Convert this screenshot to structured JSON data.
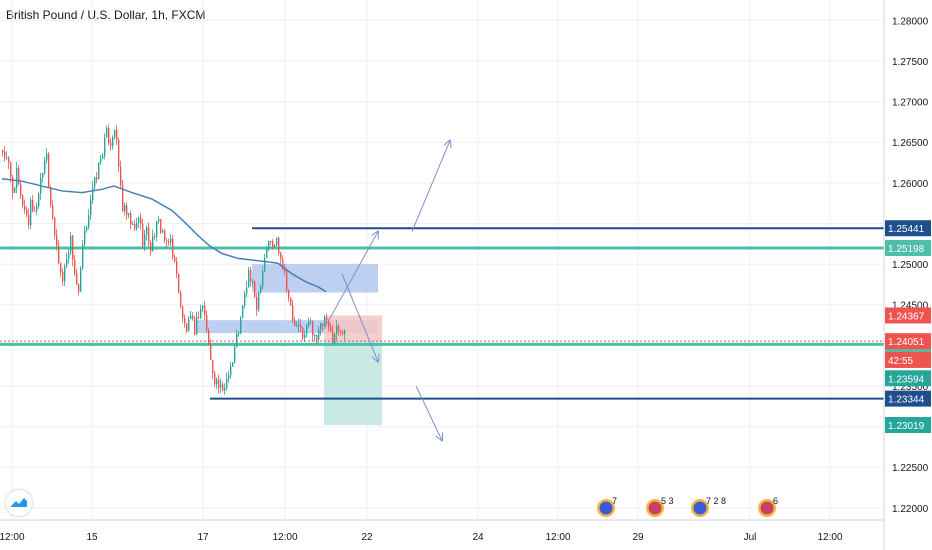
{
  "header": {
    "symbol_title": "British Pound / U.S. Dollar, 1h, FXCM"
  },
  "colors": {
    "up": "#26a69a",
    "down": "#ef5350",
    "ma": "#4a7fb5",
    "teal_line": "#4dbfa8",
    "navy_line": "#1f4e8c",
    "blue_zone": "#b3c8ef",
    "red_zone": "#f6c6c6",
    "green_zone": "#bfe5df",
    "arrow": "#7c8fd0",
    "price_line": "#d05050",
    "grid": "#eef0f3"
  },
  "chart_data": {
    "type": "candlestick",
    "title": "British Pound / U.S. Dollar, 1h, FXCM",
    "ylim": [
      1.2185,
      1.2825
    ],
    "x_tick_labels": [
      "12:00",
      "15",
      "17",
      "12:00",
      "22",
      "24",
      "12:00",
      "29",
      "Jul",
      "12:00"
    ],
    "y_tick_labels": [
      "1.28000",
      "1.27500",
      "1.27000",
      "1.26500",
      "1.26000",
      "1.25500",
      "1.25000",
      "1.24500",
      "1.24000",
      "1.23500",
      "1.23000",
      "1.22500",
      "1.22000"
    ],
    "y_ticks": [
      1.28,
      1.275,
      1.27,
      1.265,
      1.26,
      1.255,
      1.25,
      1.245,
      1.24,
      1.235,
      1.23,
      1.225,
      1.22
    ],
    "close_path": [
      [
        0,
        1.264
      ],
      [
        3,
        1.262
      ],
      [
        5,
        1.259
      ],
      [
        7,
        1.261
      ],
      [
        9,
        1.258
      ],
      [
        11,
        1.257
      ],
      [
        13,
        1.255
      ],
      [
        14,
        1.258
      ],
      [
        16,
        1.256
      ],
      [
        18,
        1.259
      ],
      [
        20,
        1.262
      ],
      [
        22,
        1.264
      ],
      [
        23,
        1.26
      ],
      [
        25,
        1.255
      ],
      [
        27,
        1.252
      ],
      [
        29,
        1.249
      ],
      [
        30,
        1.248
      ],
      [
        32,
        1.251
      ],
      [
        34,
        1.253
      ],
      [
        36,
        1.249
      ],
      [
        38,
        1.246
      ],
      [
        40,
        1.252
      ],
      [
        42,
        1.255
      ],
      [
        44,
        1.258
      ],
      [
        46,
        1.26
      ],
      [
        48,
        1.262
      ],
      [
        50,
        1.264
      ],
      [
        52,
        1.266
      ],
      [
        54,
        1.265
      ],
      [
        56,
        1.267
      ],
      [
        58,
        1.262
      ],
      [
        60,
        1.257
      ],
      [
        62,
        1.256
      ],
      [
        64,
        1.255
      ],
      [
        66,
        1.254
      ],
      [
        68,
        1.256
      ],
      [
        70,
        1.253
      ],
      [
        72,
        1.254
      ],
      [
        74,
        1.252
      ],
      [
        76,
        1.254
      ],
      [
        78,
        1.255
      ],
      [
        80,
        1.254
      ],
      [
        82,
        1.252
      ],
      [
        84,
        1.253
      ],
      [
        86,
        1.25
      ],
      [
        88,
        1.247
      ],
      [
        90,
        1.243
      ],
      [
        92,
        1.242
      ],
      [
        94,
        1.243
      ],
      [
        96,
        1.242
      ],
      [
        98,
        1.244
      ],
      [
        100,
        1.245
      ],
      [
        102,
        1.242
      ],
      [
        104,
        1.238
      ],
      [
        106,
        1.236
      ],
      [
        108,
        1.235
      ],
      [
        110,
        1.234
      ],
      [
        111,
        1.235
      ],
      [
        113,
        1.237
      ],
      [
        115,
        1.238
      ],
      [
        117,
        1.241
      ],
      [
        119,
        1.243
      ],
      [
        121,
        1.246
      ],
      [
        123,
        1.249
      ],
      [
        125,
        1.247
      ],
      [
        127,
        1.245
      ],
      [
        129,
        1.248
      ],
      [
        131,
        1.251
      ],
      [
        133,
        1.253
      ],
      [
        135,
        1.252
      ],
      [
        137,
        1.253
      ],
      [
        139,
        1.251
      ],
      [
        141,
        1.249
      ],
      [
        143,
        1.246
      ],
      [
        145,
        1.243
      ],
      [
        147,
        1.242
      ],
      [
        149,
        1.242
      ],
      [
        151,
        1.241
      ],
      [
        153,
        1.243
      ],
      [
        155,
        1.242
      ],
      [
        157,
        1.241
      ],
      [
        159,
        1.242
      ],
      [
        161,
        1.243
      ],
      [
        163,
        1.242
      ],
      [
        165,
        1.241
      ],
      [
        167,
        1.242
      ],
      [
        169,
        1.242
      ],
      [
        171,
        1.242
      ]
    ],
    "moving_average": {
      "points": [
        [
          0,
          1.2605
        ],
        [
          10,
          1.2602
        ],
        [
          20,
          1.2596
        ],
        [
          30,
          1.259
        ],
        [
          40,
          1.2588
        ],
        [
          50,
          1.2592
        ],
        [
          56,
          1.2596
        ],
        [
          65,
          1.2588
        ],
        [
          75,
          1.258
        ],
        [
          85,
          1.2566
        ],
        [
          92,
          1.255
        ],
        [
          98,
          1.2535
        ],
        [
          104,
          1.2522
        ],
        [
          110,
          1.2513
        ],
        [
          118,
          1.2507
        ],
        [
          125,
          1.2505
        ],
        [
          132,
          1.2503
        ],
        [
          138,
          1.2501
        ],
        [
          145,
          1.2488
        ],
        [
          152,
          1.2478
        ],
        [
          158,
          1.2472
        ],
        [
          162,
          1.2466
        ]
      ]
    },
    "horizontal_levels": [
      {
        "price": 1.25198,
        "label": "1.25198",
        "style": "teal"
      },
      {
        "price": 1.24012,
        "label": "1.24012",
        "style": "teal"
      },
      {
        "price": 1.25441,
        "label": "1.25441",
        "style": "navy",
        "from_index": 125
      },
      {
        "price": 1.23344,
        "label": "1.23344",
        "style": "navy",
        "from_index": 104
      }
    ],
    "zones": [
      {
        "kind": "blue",
        "from_index": 125,
        "to_index": 188,
        "top": 1.25,
        "bottom": 1.2465
      },
      {
        "kind": "blue",
        "from_index": 97,
        "to_index": 188,
        "top": 1.2431,
        "bottom": 1.2415
      },
      {
        "kind": "red",
        "from_index": 161,
        "to_index": 190,
        "top": 1.24367,
        "bottom": 1.24051
      },
      {
        "kind": "green",
        "from_index": 161,
        "to_index": 190,
        "top": 1.24051,
        "bottom": 1.23019
      }
    ],
    "price_labels": [
      {
        "price": 1.24367,
        "label": "1.24367",
        "bg": "#ef5350"
      },
      {
        "price": 1.24051,
        "label": "1.24051",
        "bg": "#ef5350",
        "dashed_line": true
      },
      {
        "price": 1.23594,
        "label": "1.23594",
        "bg": "#26a69a"
      },
      {
        "price": 1.23019,
        "label": "1.23019",
        "bg": "#26a69a"
      }
    ],
    "countdown": {
      "text": "42:55",
      "price": 1.2382
    },
    "arrows": [
      {
        "from": [
          161,
          1.242
        ],
        "to": [
          188,
          1.254
        ]
      },
      {
        "from": [
          205,
          1.254
        ],
        "to": [
          224,
          1.2652
        ]
      },
      {
        "from": [
          170,
          1.2488
        ],
        "to": [
          188,
          1.238
        ]
      },
      {
        "from": [
          207,
          1.235
        ],
        "to": [
          220,
          1.2283
        ]
      }
    ],
    "events": [
      {
        "label": "7"
      },
      {
        "label": "5 3"
      },
      {
        "label": "7 2 8"
      },
      {
        "label": "6"
      }
    ]
  }
}
